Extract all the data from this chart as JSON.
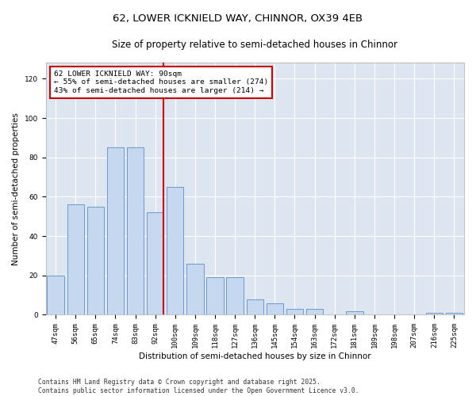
{
  "title_line1": "62, LOWER ICKNIELD WAY, CHINNOR, OX39 4EB",
  "title_line2": "Size of property relative to semi-detached houses in Chinnor",
  "xlabel": "Distribution of semi-detached houses by size in Chinnor",
  "ylabel": "Number of semi-detached properties",
  "categories": [
    "47sqm",
    "56sqm",
    "65sqm",
    "74sqm",
    "83sqm",
    "92sqm",
    "100sqm",
    "109sqm",
    "118sqm",
    "127sqm",
    "136sqm",
    "145sqm",
    "154sqm",
    "163sqm",
    "172sqm",
    "181sqm",
    "189sqm",
    "198sqm",
    "207sqm",
    "216sqm",
    "225sqm"
  ],
  "values": [
    20,
    56,
    55,
    85,
    85,
    52,
    65,
    26,
    19,
    19,
    8,
    6,
    3,
    3,
    0,
    2,
    0,
    0,
    0,
    1,
    1
  ],
  "bar_color": "#c5d8f0",
  "bar_edge_color": "#5b8ec4",
  "highlight_line_color": "#cc0000",
  "highlight_line_xindex": 5,
  "annotation_title": "62 LOWER ICKNIELD WAY: 90sqm",
  "annotation_line1": "← 55% of semi-detached houses are smaller (274)",
  "annotation_line2": "43% of semi-detached houses are larger (214) →",
  "annotation_box_color": "#ffffff",
  "annotation_box_edge": "#cc0000",
  "ylim": [
    0,
    128
  ],
  "yticks": [
    0,
    20,
    40,
    60,
    80,
    100,
    120
  ],
  "background_color": "#dde6f0",
  "footer_line1": "Contains HM Land Registry data © Crown copyright and database right 2025.",
  "footer_line2": "Contains public sector information licensed under the Open Government Licence v3.0.",
  "title_fontsize": 9.5,
  "subtitle_fontsize": 8.5,
  "axis_label_fontsize": 7.5,
  "tick_fontsize": 6.5,
  "annotation_fontsize": 6.8,
  "footer_fontsize": 5.8
}
